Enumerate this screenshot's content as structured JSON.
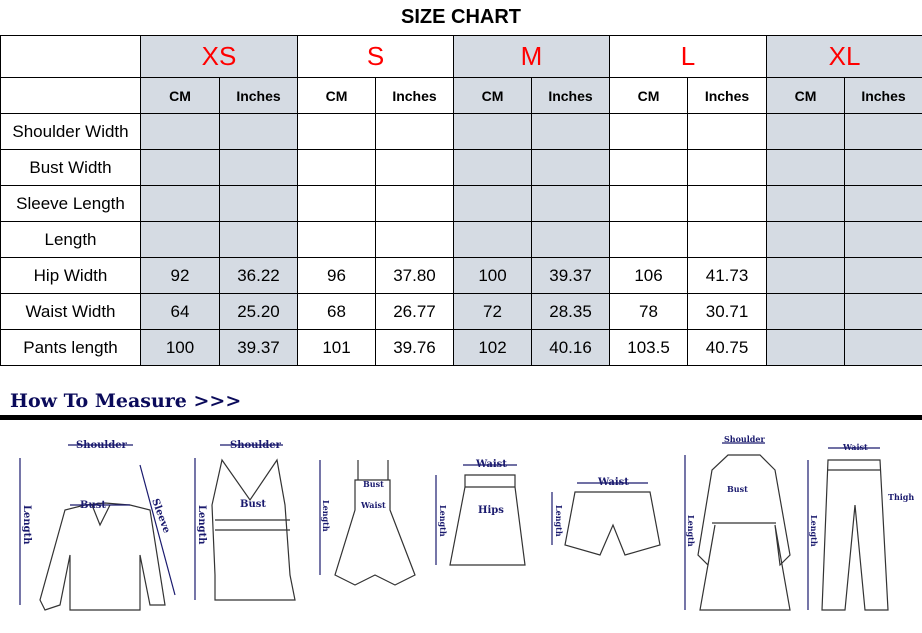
{
  "title": "SIZE CHART",
  "sizes": [
    "XS",
    "S",
    "M",
    "L",
    "XL"
  ],
  "units": [
    "CM",
    "Inches"
  ],
  "rows": [
    {
      "label": "Shoulder Width",
      "values": [
        "",
        "",
        "",
        "",
        "",
        "",
        "",
        "",
        "",
        ""
      ]
    },
    {
      "label": "Bust Width",
      "values": [
        "",
        "",
        "",
        "",
        "",
        "",
        "",
        "",
        "",
        ""
      ]
    },
    {
      "label": "Sleeve Length",
      "values": [
        "",
        "",
        "",
        "",
        "",
        "",
        "",
        "",
        "",
        ""
      ]
    },
    {
      "label": "Length",
      "values": [
        "",
        "",
        "",
        "",
        "",
        "",
        "",
        "",
        "",
        ""
      ]
    },
    {
      "label": "Hip Width",
      "values": [
        "92",
        "36.22",
        "96",
        "37.80",
        "100",
        "39.37",
        "106",
        "41.73",
        "",
        ""
      ]
    },
    {
      "label": "Waist Width",
      "values": [
        "64",
        "25.20",
        "68",
        "26.77",
        "72",
        "28.35",
        "78",
        "30.71",
        "",
        ""
      ]
    },
    {
      "label": "Pants length",
      "values": [
        "100",
        "39.37",
        "101",
        "39.76",
        "102",
        "40.16",
        "103.5",
        "40.75",
        "",
        ""
      ]
    }
  ],
  "how_to_measure": {
    "heading": "How To Measure >>>",
    "labels": {
      "shoulder": "Shoulder",
      "bust": "Bust",
      "sleeve": "Sleeve",
      "length": "Length",
      "waist": "Waist",
      "hips": "Hips",
      "thigh": "Thigh"
    }
  },
  "colors": {
    "size_label": "#ff0000",
    "shaded_column": "#d5dbe3",
    "heading": "#0a0a5a"
  }
}
